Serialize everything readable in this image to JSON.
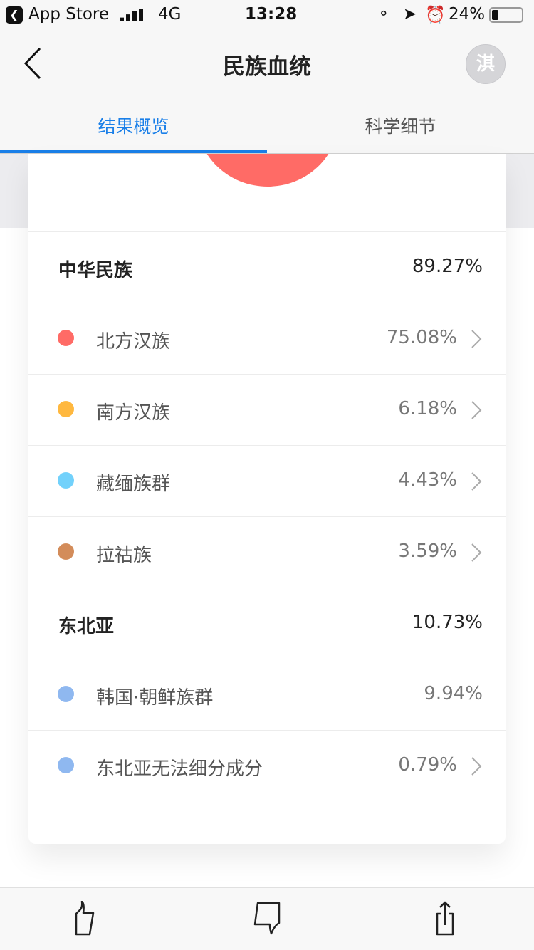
{
  "status_bar": {
    "back_app": "App Store",
    "network": "4G",
    "time": "13:28",
    "battery": "24%"
  },
  "nav": {
    "title": "民族血统",
    "avatar_text": "淇"
  },
  "tabs": [
    {
      "label": "结果概览",
      "active": true
    },
    {
      "label": "科学细节",
      "active": false
    }
  ],
  "chart_data": {
    "type": "pie",
    "values": [
      75.08,
      6.18,
      4.43,
      3.59,
      9.94,
      0.79
    ],
    "categories": [
      "北方汉族",
      "南方汉族",
      "藏缅族群",
      "拉祜族",
      "韩国·朝鲜族群",
      "东北亚无法细分成分"
    ]
  },
  "groups": [
    {
      "name": "中华民族",
      "value": "89.27%",
      "items": [
        {
          "name": "北方汉族",
          "value": "75.08%",
          "color": "#ff6b66",
          "chevron": true
        },
        {
          "name": "南方汉族",
          "value": "6.18%",
          "color": "#ffb83f",
          "chevron": true
        },
        {
          "name": "藏缅族群",
          "value": "4.43%",
          "color": "#72d1fb",
          "chevron": true
        },
        {
          "name": "拉祜族",
          "value": "3.59%",
          "color": "#d38c5a",
          "chevron": true
        }
      ]
    },
    {
      "name": "东北亚",
      "value": "10.73%",
      "items": [
        {
          "name": "韩国·朝鲜族群",
          "value": "9.94%",
          "color": "#8fb8f0",
          "chevron": false
        },
        {
          "name": "东北亚无法细分成分",
          "value": "0.79%",
          "color": "#8fb8f0",
          "chevron": true
        }
      ]
    }
  ],
  "bottom_bar": [
    "thumbs-up-icon",
    "thumbs-down-icon",
    "share-icon"
  ]
}
